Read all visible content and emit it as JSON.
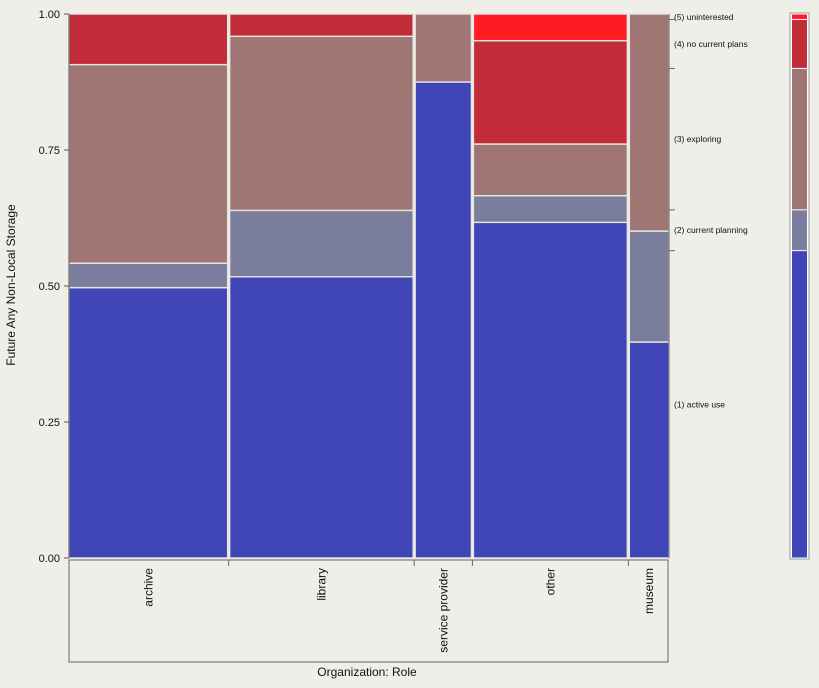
{
  "chart_data": {
    "type": "mosaic",
    "title": "",
    "xlabel": "Organization: Role",
    "ylabel": "Future Any Non-Local Storage",
    "ylim": [
      0,
      1
    ],
    "yticks": [
      "0.00",
      "0.25",
      "0.50",
      "0.75",
      "1.00"
    ],
    "categories": [
      "archive",
      "library",
      "service provider",
      "other",
      "museum"
    ],
    "category_widths": [
      0.268,
      0.31,
      0.095,
      0.26,
      0.067
    ],
    "levels": [
      {
        "name": "(1) active use",
        "color": "#4045b8"
      },
      {
        "name": "(2) current planning",
        "color": "#7a7e9c"
      },
      {
        "name": "(3) exploring",
        "color": "#a07674"
      },
      {
        "name": "(4) no current plans",
        "color": "#c22c38"
      },
      {
        "name": "(5) uninterested",
        "color": "#fe1b24"
      }
    ],
    "proportions": [
      [
        0.497,
        0.045,
        0.365,
        0.093,
        0.0
      ],
      [
        0.517,
        0.122,
        0.32,
        0.041,
        0.0
      ],
      [
        0.875,
        0.0,
        0.125,
        0.0,
        0.0
      ],
      [
        0.617,
        0.049,
        0.095,
        0.19,
        0.049
      ],
      [
        0.397,
        0.204,
        0.399,
        0.0,
        0.0
      ]
    ],
    "overall_proportions": [
      0.565,
      0.075,
      0.26,
      0.09,
      0.01
    ],
    "legend_placement": "right",
    "grid": false
  }
}
